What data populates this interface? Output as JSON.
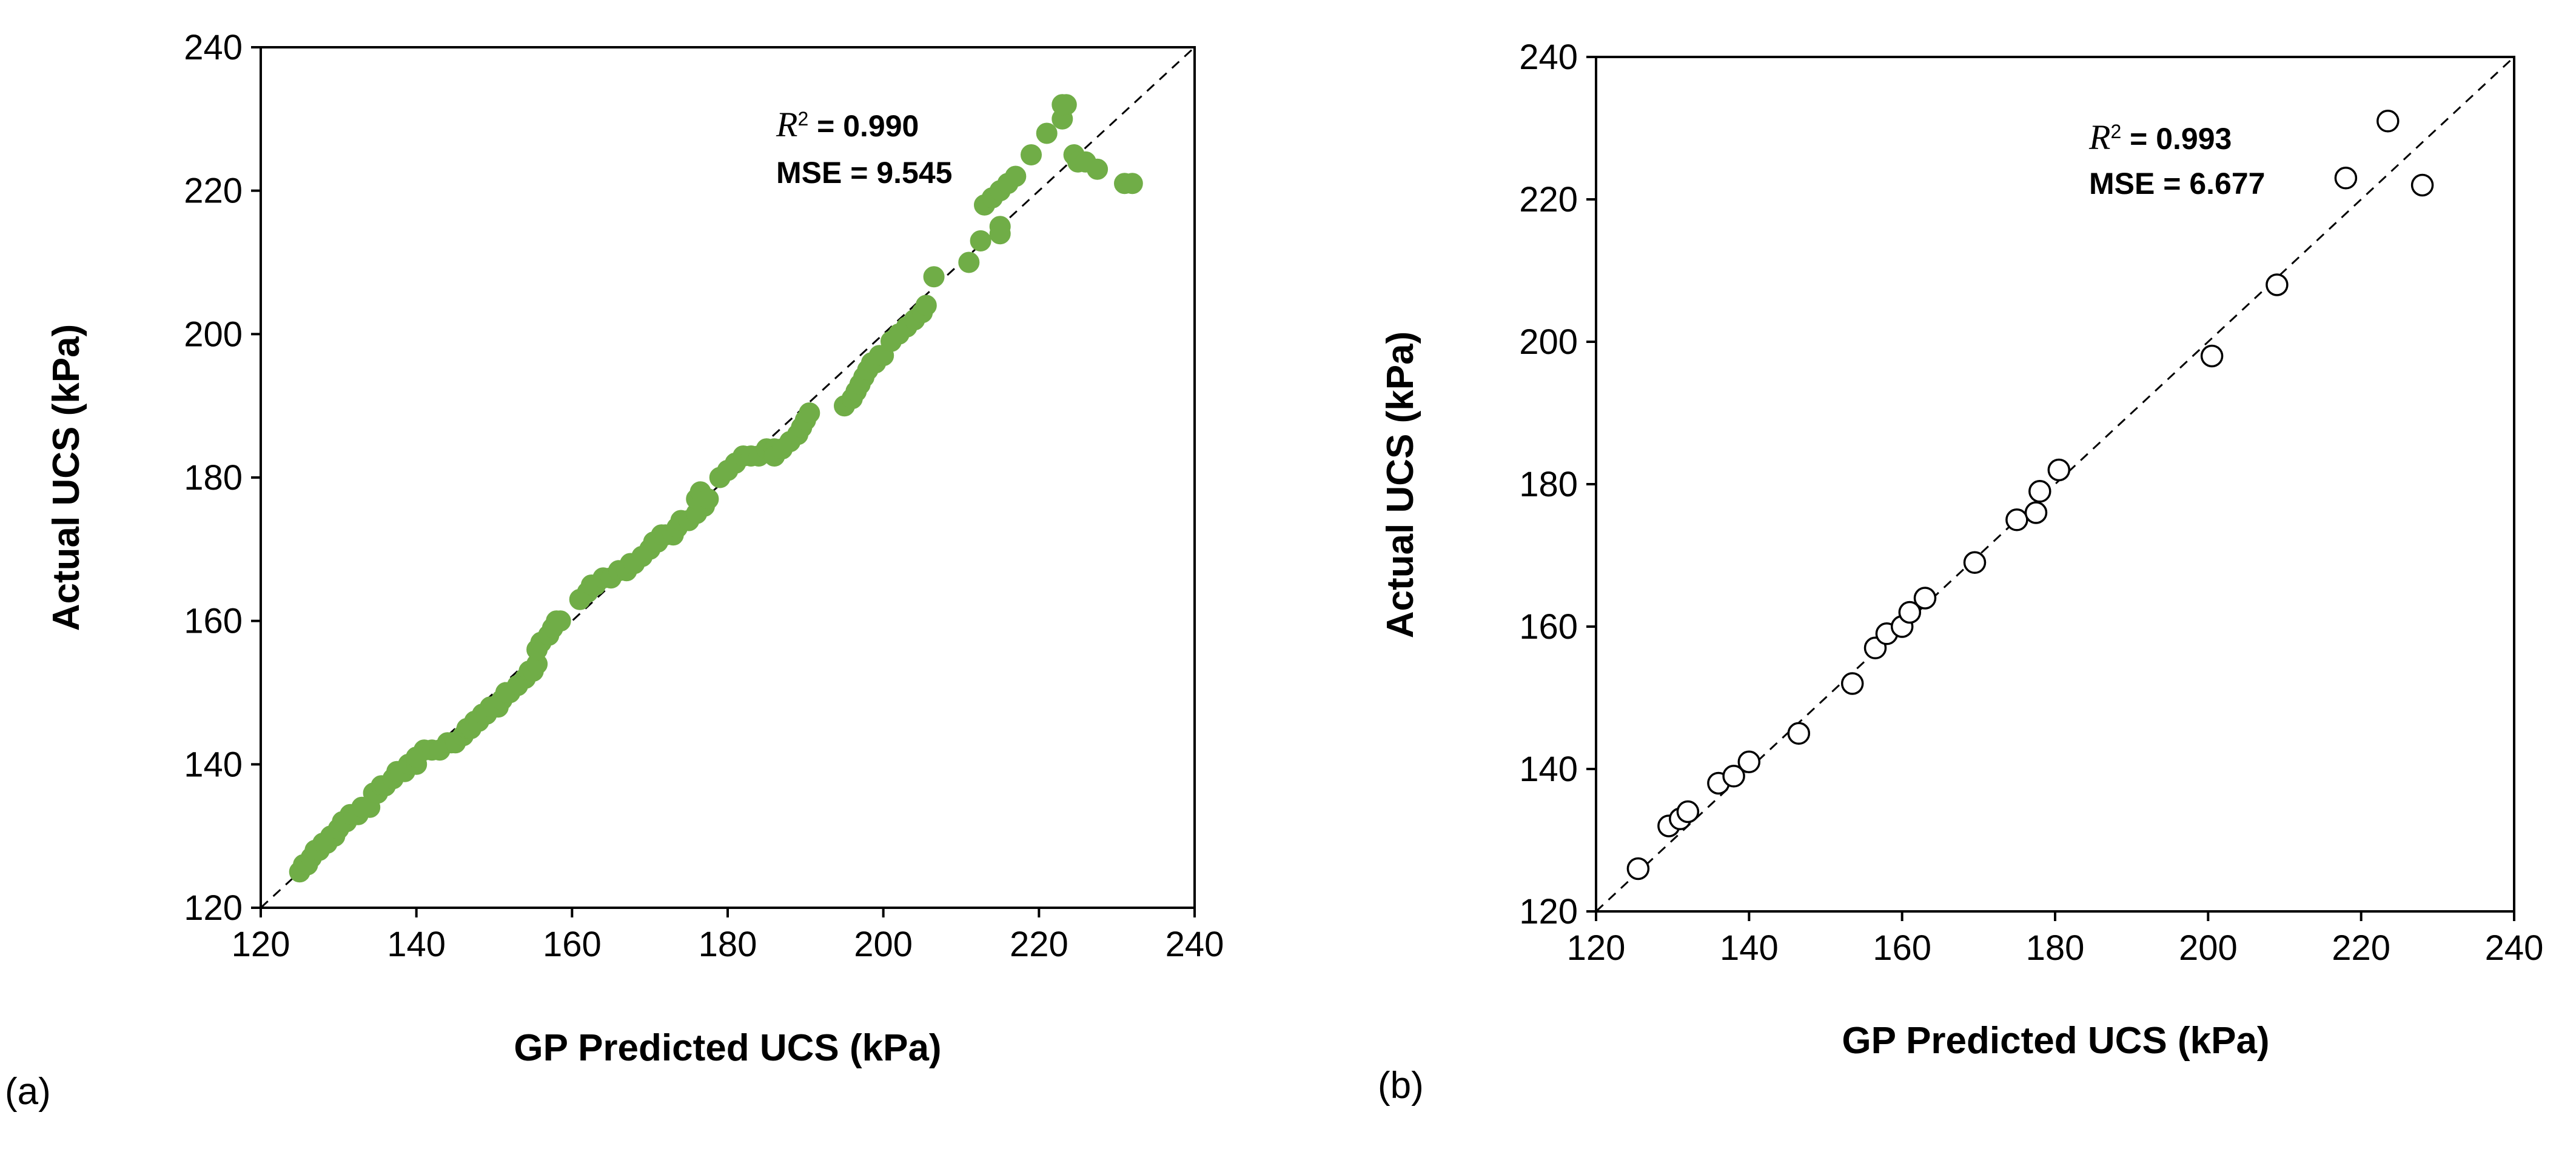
{
  "chart_data": [
    {
      "type": "scatter",
      "panel_label": "(a)",
      "xlabel": "GP Predicted UCS (kPa)",
      "ylabel": "Actual UCS (kPa)",
      "xlim": [
        120,
        240
      ],
      "ylim": [
        120,
        240
      ],
      "xticks": [
        "120",
        "140",
        "160",
        "180",
        "200",
        "220",
        "240"
      ],
      "yticks": [
        "120",
        "140",
        "160",
        "180",
        "200",
        "220",
        "240"
      ],
      "marker": "filled-circle",
      "marker_color": "#70ad47",
      "reference_line": "y = x (dashed)",
      "annotation": {
        "r2_symbol": "R",
        "r2_sup": "2",
        "r2_value": " = 0.990",
        "mse": "MSE = 9.545"
      },
      "points": [
        [
          125,
          125
        ],
        [
          125.5,
          126
        ],
        [
          126,
          126
        ],
        [
          126.5,
          127
        ],
        [
          127,
          128
        ],
        [
          127.5,
          128
        ],
        [
          128,
          129
        ],
        [
          128.5,
          129
        ],
        [
          129,
          130
        ],
        [
          129.5,
          130
        ],
        [
          130,
          131
        ],
        [
          130.5,
          132
        ],
        [
          131,
          132
        ],
        [
          131.5,
          133
        ],
        [
          132,
          133
        ],
        [
          132.5,
          133
        ],
        [
          133,
          134
        ],
        [
          134,
          134
        ],
        [
          134.5,
          136
        ],
        [
          135,
          136
        ],
        [
          135.5,
          137
        ],
        [
          136,
          137
        ],
        [
          137,
          138
        ],
        [
          137.5,
          139
        ],
        [
          138,
          139
        ],
        [
          138.5,
          139
        ],
        [
          139,
          140
        ],
        [
          140,
          140
        ],
        [
          140,
          141
        ],
        [
          141,
          142
        ],
        [
          142,
          142
        ],
        [
          143,
          142
        ],
        [
          144,
          143
        ],
        [
          144.5,
          143
        ],
        [
          145,
          143
        ],
        [
          146,
          144
        ],
        [
          146.5,
          145
        ],
        [
          147,
          145
        ],
        [
          147.5,
          146
        ],
        [
          148,
          146
        ],
        [
          148.5,
          147
        ],
        [
          149,
          147
        ],
        [
          149.5,
          148
        ],
        [
          150,
          148
        ],
        [
          150.5,
          148
        ],
        [
          151,
          149
        ],
        [
          151.5,
          150
        ],
        [
          152,
          150
        ],
        [
          153,
          151
        ],
        [
          154,
          152
        ],
        [
          154.5,
          153
        ],
        [
          155,
          153
        ],
        [
          155.5,
          154
        ],
        [
          155.5,
          156
        ],
        [
          156,
          157
        ],
        [
          157,
          158
        ],
        [
          157.5,
          159
        ],
        [
          158,
          160
        ],
        [
          158.5,
          160
        ],
        [
          161,
          163
        ],
        [
          162,
          164
        ],
        [
          162.5,
          165
        ],
        [
          163,
          165
        ],
        [
          164,
          166
        ],
        [
          165,
          166
        ],
        [
          166,
          167
        ],
        [
          167,
          167
        ],
        [
          167.5,
          168
        ],
        [
          168,
          168
        ],
        [
          169,
          169
        ],
        [
          170,
          170
        ],
        [
          170.5,
          171
        ],
        [
          171,
          171
        ],
        [
          171.5,
          172
        ],
        [
          172,
          172
        ],
        [
          173,
          172
        ],
        [
          173.5,
          173
        ],
        [
          174,
          174
        ],
        [
          175,
          174
        ],
        [
          176,
          175
        ],
        [
          176,
          177
        ],
        [
          176.5,
          178
        ],
        [
          177,
          176
        ],
        [
          177.5,
          177
        ],
        [
          179,
          180
        ],
        [
          180,
          181
        ],
        [
          181,
          182
        ],
        [
          182,
          183
        ],
        [
          183,
          183
        ],
        [
          184,
          183
        ],
        [
          185,
          184
        ],
        [
          186,
          184
        ],
        [
          186,
          183
        ],
        [
          187,
          184
        ],
        [
          188,
          185
        ],
        [
          189,
          186
        ],
        [
          189.5,
          187
        ],
        [
          190,
          188
        ],
        [
          190.5,
          189
        ],
        [
          195,
          190
        ],
        [
          196,
          191
        ],
        [
          196.5,
          192
        ],
        [
          197,
          193
        ],
        [
          197.5,
          194
        ],
        [
          198,
          195
        ],
        [
          198.5,
          196
        ],
        [
          199,
          196
        ],
        [
          199.5,
          197
        ],
        [
          200,
          197
        ],
        [
          201,
          199
        ],
        [
          202,
          200
        ],
        [
          203,
          201
        ],
        [
          204,
          202
        ],
        [
          205,
          203
        ],
        [
          205.5,
          204
        ],
        [
          206.5,
          208
        ],
        [
          211,
          210
        ],
        [
          212.5,
          213
        ],
        [
          213,
          218
        ],
        [
          214,
          219
        ],
        [
          215,
          215
        ],
        [
          215,
          214
        ],
        [
          215,
          220
        ],
        [
          216,
          221
        ],
        [
          217,
          222
        ],
        [
          219,
          225
        ],
        [
          221,
          228
        ],
        [
          223,
          230
        ],
        [
          223.5,
          232
        ],
        [
          223,
          232
        ],
        [
          224.5,
          225
        ],
        [
          225,
          224
        ],
        [
          226,
          224
        ],
        [
          227.5,
          223
        ],
        [
          231,
          221
        ],
        [
          232,
          221
        ]
      ]
    },
    {
      "type": "scatter",
      "panel_label": "(b)",
      "xlabel": "GP Predicted UCS (kPa)",
      "ylabel": "Actual UCS (kPa)",
      "xlim": [
        120,
        240
      ],
      "ylim": [
        120,
        240
      ],
      "xticks": [
        "120",
        "140",
        "160",
        "180",
        "200",
        "220",
        "240"
      ],
      "yticks": [
        "120",
        "140",
        "160",
        "180",
        "200",
        "220",
        "240"
      ],
      "marker": "hollow-circle",
      "marker_color": "#000000",
      "reference_line": "y = x (dashed)",
      "annotation": {
        "r2_symbol": "R",
        "r2_sup": "2",
        "r2_value": " = 0.993",
        "mse": "MSE = 6.677"
      },
      "points": [
        [
          125.5,
          126
        ],
        [
          129.5,
          132
        ],
        [
          131,
          133
        ],
        [
          132,
          134
        ],
        [
          136,
          138
        ],
        [
          138,
          139
        ],
        [
          140,
          141
        ],
        [
          146.5,
          145
        ],
        [
          153.5,
          152
        ],
        [
          156.5,
          157
        ],
        [
          158,
          159
        ],
        [
          160,
          160
        ],
        [
          161,
          162
        ],
        [
          163,
          164
        ],
        [
          169.5,
          169
        ],
        [
          175,
          175
        ],
        [
          177.5,
          176
        ],
        [
          178,
          179
        ],
        [
          180.5,
          182
        ],
        [
          200.5,
          198
        ],
        [
          209,
          208
        ],
        [
          218,
          223
        ],
        [
          223.5,
          231
        ],
        [
          228,
          222
        ]
      ]
    }
  ]
}
